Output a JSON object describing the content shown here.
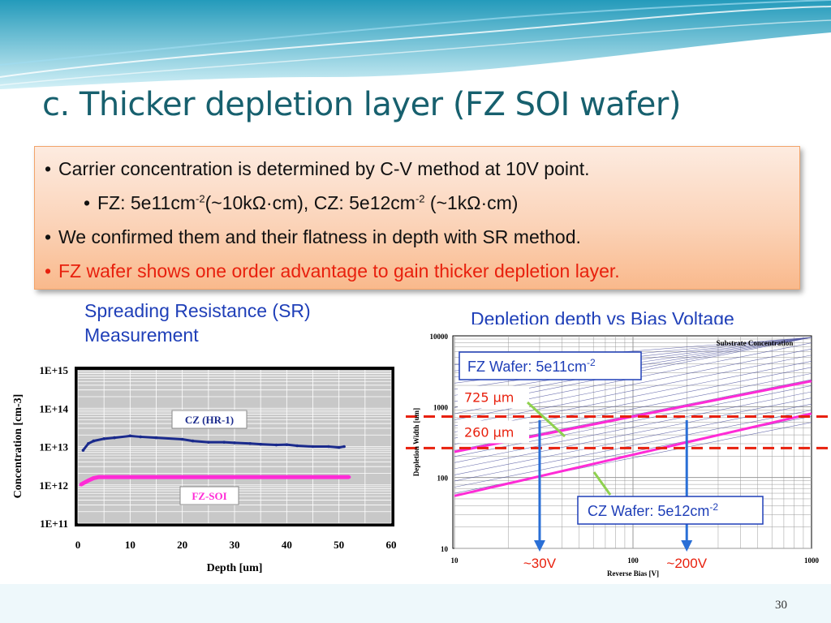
{
  "title": "c. Thicker depletion layer (FZ SOI wafer)",
  "bullets": {
    "b1": "Carrier concentration is determined by C-V method at 10V point.",
    "b2a": "FZ: 5e11cm",
    "b2sup1": "-2",
    "b2b": "(~10kΩ·cm), CZ: 5e12cm",
    "b2sup2": "-2",
    "b2c": " (~1kΩ·cm)",
    "b3": "We confirmed them and their flatness in depth with SR method.",
    "b4": "FZ wafer shows one order advantage to gain thicker depletion layer."
  },
  "left_caption": {
    "line1": "Spreading Resistance (SR)",
    "line2": "Measurement"
  },
  "right_caption": "Depletion depth vs Bias Voltage",
  "page_number": "30",
  "colors": {
    "title": "#17606e",
    "accent_red": "#e8200d",
    "caption_blue": "#1f3fb8",
    "magenta": "#ff2bd6",
    "navy": "#1a2a8c"
  },
  "chart_data": [
    {
      "type": "line",
      "xlabel": "Depth [um]",
      "ylabel": "Concentration [cm-3]",
      "xlim": [
        0,
        60
      ],
      "ylim_log10": [
        11,
        15
      ],
      "x_ticks": [
        "0",
        "10",
        "20",
        "30",
        "40",
        "50",
        "60"
      ],
      "y_ticks": [
        "1E+11",
        "1E+12",
        "1E+13",
        "1E+14",
        "1E+15"
      ],
      "series": [
        {
          "name": "CZ (HR-1)",
          "color": "#1a2a8c",
          "x": [
            1,
            2,
            3,
            5,
            7,
            10,
            12,
            15,
            20,
            22,
            25,
            28,
            30,
            33,
            35,
            38,
            40,
            42,
            45,
            48,
            50,
            51
          ],
          "y": [
            8000000000000.0,
            12000000000000.0,
            14000000000000.0,
            16000000000000.0,
            17000000000000.0,
            19000000000000.0,
            18000000000000.0,
            17000000000000.0,
            15500000000000.0,
            14000000000000.0,
            13000000000000.0,
            13000000000000.0,
            12500000000000.0,
            12000000000000.0,
            11500000000000.0,
            11000000000000.0,
            11200000000000.0,
            10500000000000.0,
            10000000000000.0,
            10000000000000.0,
            9500000000000.0,
            10000000000000.0
          ]
        },
        {
          "name": "FZ-SOI",
          "color": "#ff2bd6",
          "x": [
            0.5,
            1,
            2,
            3,
            4,
            6,
            10,
            20,
            30,
            40,
            50,
            52
          ],
          "y": [
            1000000000000.0,
            1100000000000.0,
            1300000000000.0,
            1500000000000.0,
            1600000000000.0,
            1600000000000.0,
            1600000000000.0,
            1600000000000.0,
            1600000000000.0,
            1600000000000.0,
            1600000000000.0,
            1600000000000.0
          ]
        }
      ]
    },
    {
      "type": "line",
      "xlabel": "Reverse Bias [V]",
      "ylabel": "Depletion Width [um]",
      "x_log": true,
      "y_log": true,
      "xlim": [
        10,
        1000
      ],
      "ylim": [
        10,
        10000
      ],
      "x_ticks": [
        "10",
        "100",
        "1000"
      ],
      "y_ticks": [
        "10",
        "100",
        "1000",
        "10000"
      ],
      "legend_title": "Substrate Concentration",
      "series": [
        {
          "name": "FZ Wafer: 5e11cm-2",
          "color": "#ff2bd6",
          "x": [
            10,
            1000
          ],
          "y": [
            230,
            2300
          ]
        },
        {
          "name": "CZ Wafer: 5e12cm-2",
          "color": "#ff2bd6",
          "x": [
            10,
            1000
          ],
          "y": [
            55,
            800
          ]
        }
      ],
      "reference_lines": [
        {
          "label": "725 μm",
          "value": 725,
          "color": "#e8200d"
        },
        {
          "label": "260 μm",
          "value": 260,
          "color": "#e8200d"
        }
      ],
      "markers": [
        {
          "label": "~30V",
          "x": 30
        },
        {
          "label": "~200V",
          "x": 200
        }
      ],
      "callouts": {
        "fz": "FZ Wafer: 5e11cm",
        "fz_sup": "-2",
        "cz": "CZ Wafer: 5e12cm",
        "cz_sup": "-2"
      }
    }
  ]
}
